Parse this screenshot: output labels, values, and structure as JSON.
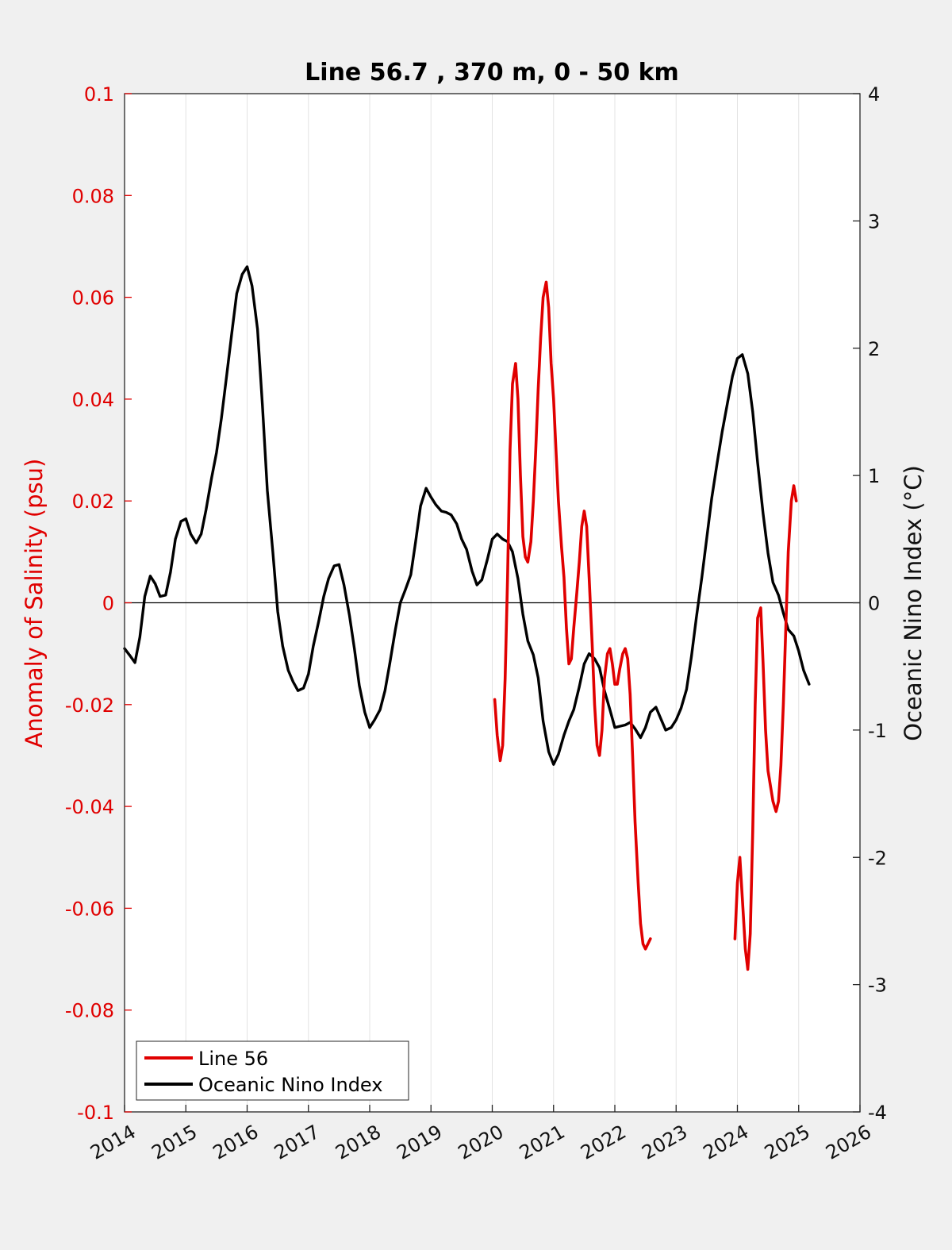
{
  "chart_data": {
    "type": "line",
    "title": "Line 56.7 , 370 m, 0 - 50 km",
    "ylabel": "Anomaly of Salinity (psu)",
    "ylabel_right": "Oceanic Nino Index (°C)",
    "xlim": [
      2014,
      2026
    ],
    "ylim": [
      -0.1,
      0.1
    ],
    "ylim_right": [
      -4,
      4
    ],
    "x_ticks": [
      2014,
      2015,
      2016,
      2017,
      2018,
      2019,
      2020,
      2021,
      2022,
      2023,
      2024,
      2025,
      2026
    ],
    "x_tick_labels": [
      "2014",
      "2015",
      "2016",
      "2017",
      "2018",
      "2019",
      "2020",
      "2021",
      "2022",
      "2023",
      "2024",
      "2025",
      "2026"
    ],
    "y_ticks": [
      0.1,
      0.08,
      0.06,
      0.04,
      0.02,
      0,
      -0.02,
      -0.04,
      -0.06,
      -0.08,
      -0.1
    ],
    "y_tick_labels": [
      "0.1",
      "0.08",
      "0.06",
      "0.04",
      "0.02",
      "0",
      "-0.02",
      "-0.04",
      "-0.06",
      "-0.08",
      "-0.1"
    ],
    "y_ticks_right": [
      4,
      3,
      2,
      1,
      0,
      -1,
      -2,
      -3,
      -4
    ],
    "y_tick_labels_right": [
      "4",
      "3",
      "2",
      "1",
      "0",
      "-1",
      "-2",
      "-3",
      "-4"
    ],
    "grid": "vertical",
    "legend_position": "bottom-left",
    "series": [
      {
        "name": "Line 56",
        "axis": "left",
        "color": "#e00000",
        "segments": [
          [
            [
              2020.04,
              -0.019
            ],
            [
              2020.08,
              -0.026
            ],
            [
              2020.13,
              -0.031
            ],
            [
              2020.17,
              -0.028
            ],
            [
              2020.21,
              -0.015
            ],
            [
              2020.25,
              0.005
            ],
            [
              2020.29,
              0.03
            ],
            [
              2020.33,
              0.043
            ],
            [
              2020.38,
              0.047
            ],
            [
              2020.42,
              0.04
            ],
            [
              2020.46,
              0.025
            ],
            [
              2020.5,
              0.013
            ],
            [
              2020.54,
              0.009
            ],
            [
              2020.58,
              0.008
            ],
            [
              2020.63,
              0.012
            ],
            [
              2020.67,
              0.02
            ],
            [
              2020.71,
              0.03
            ],
            [
              2020.75,
              0.042
            ],
            [
              2020.79,
              0.052
            ],
            [
              2020.83,
              0.06
            ],
            [
              2020.88,
              0.063
            ],
            [
              2020.92,
              0.058
            ],
            [
              2020.96,
              0.047
            ],
            [
              2021.0,
              0.04
            ],
            [
              2021.04,
              0.03
            ],
            [
              2021.08,
              0.02
            ],
            [
              2021.13,
              0.011
            ],
            [
              2021.17,
              0.005
            ],
            [
              2021.21,
              -0.005
            ],
            [
              2021.25,
              -0.012
            ],
            [
              2021.29,
              -0.011
            ],
            [
              2021.33,
              -0.005
            ],
            [
              2021.38,
              0.002
            ],
            [
              2021.42,
              0.008
            ],
            [
              2021.46,
              0.015
            ],
            [
              2021.5,
              0.018
            ],
            [
              2021.54,
              0.015
            ],
            [
              2021.58,
              0.005
            ],
            [
              2021.63,
              -0.008
            ],
            [
              2021.67,
              -0.02
            ],
            [
              2021.71,
              -0.028
            ],
            [
              2021.75,
              -0.03
            ],
            [
              2021.79,
              -0.025
            ],
            [
              2021.83,
              -0.015
            ],
            [
              2021.88,
              -0.01
            ],
            [
              2021.92,
              -0.009
            ],
            [
              2021.96,
              -0.012
            ],
            [
              2022.0,
              -0.016
            ],
            [
              2022.04,
              -0.016
            ],
            [
              2022.08,
              -0.013
            ],
            [
              2022.13,
              -0.01
            ],
            [
              2022.17,
              -0.009
            ],
            [
              2022.21,
              -0.011
            ],
            [
              2022.25,
              -0.018
            ],
            [
              2022.29,
              -0.03
            ],
            [
              2022.33,
              -0.043
            ],
            [
              2022.38,
              -0.055
            ],
            [
              2022.42,
              -0.063
            ],
            [
              2022.46,
              -0.067
            ],
            [
              2022.5,
              -0.068
            ],
            [
              2022.54,
              -0.067
            ],
            [
              2022.58,
              -0.066
            ]
          ],
          [
            [
              2023.96,
              -0.066
            ],
            [
              2024.0,
              -0.055
            ],
            [
              2024.04,
              -0.05
            ],
            [
              2024.08,
              -0.058
            ],
            [
              2024.13,
              -0.068
            ],
            [
              2024.17,
              -0.072
            ],
            [
              2024.21,
              -0.065
            ],
            [
              2024.25,
              -0.045
            ],
            [
              2024.29,
              -0.02
            ],
            [
              2024.33,
              -0.003
            ],
            [
              2024.38,
              -0.001
            ],
            [
              2024.42,
              -0.012
            ],
            [
              2024.46,
              -0.025
            ],
            [
              2024.5,
              -0.033
            ],
            [
              2024.54,
              -0.036
            ],
            [
              2024.58,
              -0.039
            ],
            [
              2024.63,
              -0.041
            ],
            [
              2024.67,
              -0.039
            ],
            [
              2024.71,
              -0.032
            ],
            [
              2024.75,
              -0.02
            ],
            [
              2024.79,
              -0.005
            ],
            [
              2024.83,
              0.01
            ],
            [
              2024.88,
              0.02
            ],
            [
              2024.92,
              0.023
            ],
            [
              2024.96,
              0.02
            ]
          ]
        ]
      },
      {
        "name": "Oceanic Nino Index",
        "axis": "right",
        "color": "#000000",
        "points": [
          [
            2014.0,
            -0.36
          ],
          [
            2014.08,
            -0.41
          ],
          [
            2014.17,
            -0.47
          ],
          [
            2014.25,
            -0.27
          ],
          [
            2014.33,
            0.05
          ],
          [
            2014.42,
            0.21
          ],
          [
            2014.5,
            0.15
          ],
          [
            2014.58,
            0.05
          ],
          [
            2014.67,
            0.06
          ],
          [
            2014.75,
            0.24
          ],
          [
            2014.83,
            0.5
          ],
          [
            2014.92,
            0.64
          ],
          [
            2015.0,
            0.66
          ],
          [
            2015.08,
            0.54
          ],
          [
            2015.17,
            0.47
          ],
          [
            2015.25,
            0.54
          ],
          [
            2015.33,
            0.73
          ],
          [
            2015.42,
            0.98
          ],
          [
            2015.5,
            1.18
          ],
          [
            2015.58,
            1.45
          ],
          [
            2015.67,
            1.8
          ],
          [
            2015.75,
            2.12
          ],
          [
            2015.83,
            2.43
          ],
          [
            2015.92,
            2.58
          ],
          [
            2016.0,
            2.64
          ],
          [
            2016.08,
            2.49
          ],
          [
            2016.17,
            2.15
          ],
          [
            2016.25,
            1.55
          ],
          [
            2016.33,
            0.88
          ],
          [
            2016.42,
            0.4
          ],
          [
            2016.5,
            -0.07
          ],
          [
            2016.58,
            -0.34
          ],
          [
            2016.67,
            -0.53
          ],
          [
            2016.75,
            -0.62
          ],
          [
            2016.83,
            -0.69
          ],
          [
            2016.92,
            -0.67
          ],
          [
            2017.0,
            -0.56
          ],
          [
            2017.08,
            -0.34
          ],
          [
            2017.17,
            -0.14
          ],
          [
            2017.25,
            0.05
          ],
          [
            2017.33,
            0.19
          ],
          [
            2017.42,
            0.29
          ],
          [
            2017.5,
            0.3
          ],
          [
            2017.58,
            0.14
          ],
          [
            2017.67,
            -0.1
          ],
          [
            2017.75,
            -0.36
          ],
          [
            2017.83,
            -0.65
          ],
          [
            2017.92,
            -0.86
          ],
          [
            2018.0,
            -0.98
          ],
          [
            2018.08,
            -0.92
          ],
          [
            2018.17,
            -0.84
          ],
          [
            2018.25,
            -0.69
          ],
          [
            2018.33,
            -0.47
          ],
          [
            2018.42,
            -0.21
          ],
          [
            2018.5,
            0.0
          ],
          [
            2018.58,
            0.1
          ],
          [
            2018.67,
            0.22
          ],
          [
            2018.75,
            0.48
          ],
          [
            2018.83,
            0.76
          ],
          [
            2018.92,
            0.9
          ],
          [
            2019.0,
            0.83
          ],
          [
            2019.08,
            0.77
          ],
          [
            2019.17,
            0.72
          ],
          [
            2019.25,
            0.71
          ],
          [
            2019.33,
            0.69
          ],
          [
            2019.42,
            0.62
          ],
          [
            2019.5,
            0.5
          ],
          [
            2019.58,
            0.42
          ],
          [
            2019.67,
            0.25
          ],
          [
            2019.75,
            0.14
          ],
          [
            2019.83,
            0.18
          ],
          [
            2019.92,
            0.34
          ],
          [
            2020.0,
            0.5
          ],
          [
            2020.08,
            0.54
          ],
          [
            2020.17,
            0.5
          ],
          [
            2020.25,
            0.48
          ],
          [
            2020.33,
            0.4
          ],
          [
            2020.42,
            0.19
          ],
          [
            2020.5,
            -0.09
          ],
          [
            2020.58,
            -0.3
          ],
          [
            2020.67,
            -0.41
          ],
          [
            2020.75,
            -0.59
          ],
          [
            2020.83,
            -0.93
          ],
          [
            2020.92,
            -1.17
          ],
          [
            2021.0,
            -1.27
          ],
          [
            2021.08,
            -1.19
          ],
          [
            2021.17,
            -1.04
          ],
          [
            2021.25,
            -0.93
          ],
          [
            2021.33,
            -0.84
          ],
          [
            2021.42,
            -0.66
          ],
          [
            2021.5,
            -0.48
          ],
          [
            2021.58,
            -0.4
          ],
          [
            2021.67,
            -0.44
          ],
          [
            2021.75,
            -0.51
          ],
          [
            2021.83,
            -0.69
          ],
          [
            2021.92,
            -0.84
          ],
          [
            2022.0,
            -0.98
          ],
          [
            2022.08,
            -0.97
          ],
          [
            2022.17,
            -0.96
          ],
          [
            2022.25,
            -0.94
          ],
          [
            2022.33,
            -0.99
          ],
          [
            2022.42,
            -1.06
          ],
          [
            2022.5,
            -0.98
          ],
          [
            2022.58,
            -0.86
          ],
          [
            2022.67,
            -0.82
          ],
          [
            2022.75,
            -0.91
          ],
          [
            2022.83,
            -1.0
          ],
          [
            2022.92,
            -0.98
          ],
          [
            2023.0,
            -0.92
          ],
          [
            2023.08,
            -0.83
          ],
          [
            2023.17,
            -0.68
          ],
          [
            2023.25,
            -0.42
          ],
          [
            2023.33,
            -0.12
          ],
          [
            2023.42,
            0.2
          ],
          [
            2023.5,
            0.51
          ],
          [
            2023.58,
            0.82
          ],
          [
            2023.67,
            1.1
          ],
          [
            2023.75,
            1.34
          ],
          [
            2023.83,
            1.55
          ],
          [
            2023.92,
            1.78
          ],
          [
            2024.0,
            1.92
          ],
          [
            2024.08,
            1.95
          ],
          [
            2024.17,
            1.8
          ],
          [
            2024.25,
            1.5
          ],
          [
            2024.33,
            1.1
          ],
          [
            2024.42,
            0.7
          ],
          [
            2024.5,
            0.39
          ],
          [
            2024.58,
            0.16
          ],
          [
            2024.67,
            0.06
          ],
          [
            2024.75,
            -0.08
          ],
          [
            2024.83,
            -0.21
          ],
          [
            2024.92,
            -0.26
          ],
          [
            2025.0,
            -0.38
          ],
          [
            2025.08,
            -0.53
          ],
          [
            2025.17,
            -0.64
          ]
        ]
      }
    ]
  }
}
